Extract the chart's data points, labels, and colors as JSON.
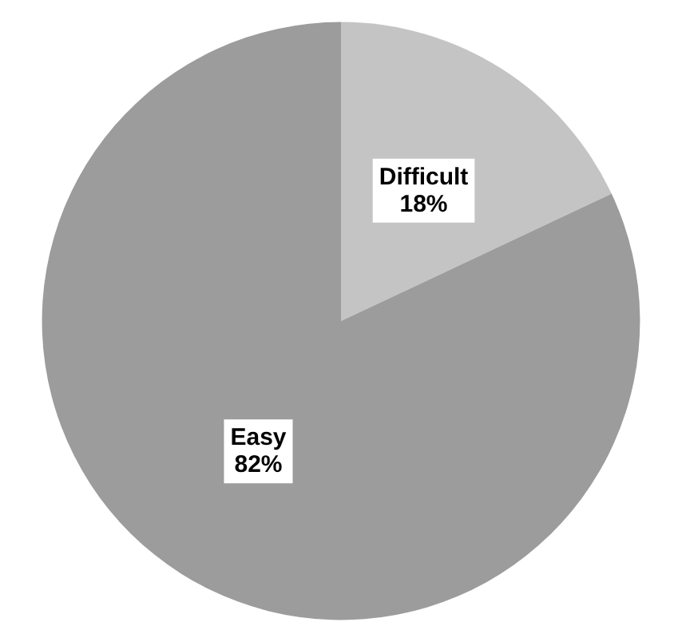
{
  "chart_data": {
    "type": "pie",
    "categories": [
      "Difficult",
      "Easy"
    ],
    "values": [
      18,
      82
    ],
    "colors": [
      "#c4c4c4",
      "#9c9c9c"
    ],
    "value_labels": [
      "18%",
      "82%"
    ],
    "legend": false
  }
}
